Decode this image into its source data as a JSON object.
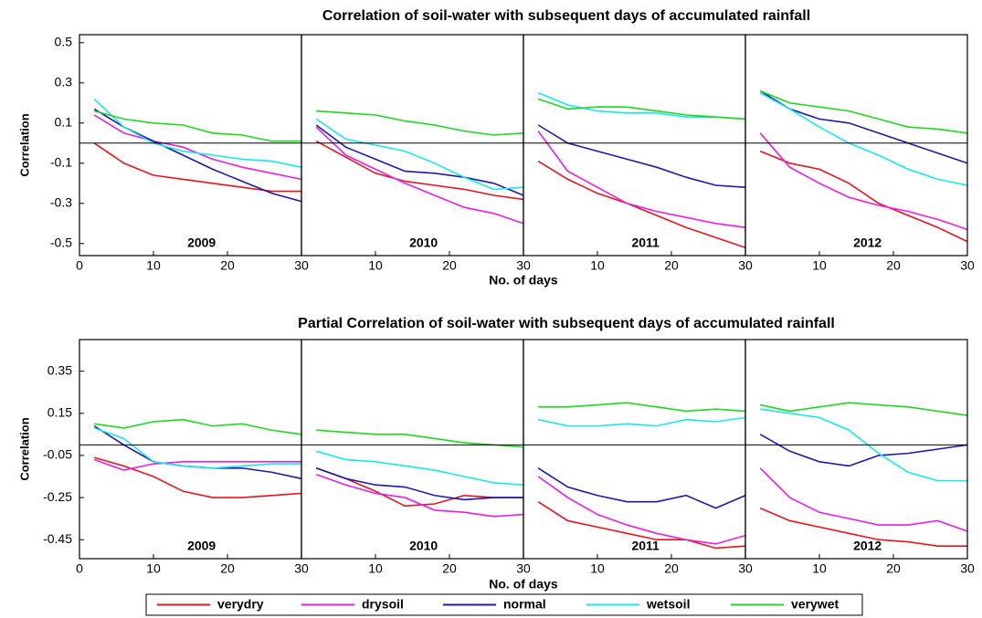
{
  "legend": [
    {
      "name": "verydry",
      "color": "#e8141b"
    },
    {
      "name": "drysoil",
      "color": "#e81ee8"
    },
    {
      "name": "normal",
      "color": "#1a1ab0"
    },
    {
      "name": "wetsoil",
      "color": "#17e8e8"
    },
    {
      "name": "verywet",
      "color": "#1ed81e"
    }
  ],
  "chart_data": [
    {
      "type": "line",
      "title": "Correlation of soil-water with subsequent days of accumulated rainfall",
      "xlabel": "No. of days",
      "ylabel": "Correlation",
      "x": [
        2,
        6,
        10,
        14,
        18,
        22,
        26,
        30
      ],
      "xlim": [
        0,
        30
      ],
      "xticks": [
        0,
        10,
        20,
        30
      ],
      "ylim": [
        -0.56,
        0.54
      ],
      "yticks": [
        0.5,
        0.3,
        0.1,
        -0.1,
        -0.3,
        -0.5
      ],
      "panels": [
        {
          "label": "2009",
          "series": [
            {
              "values": [
                0.0,
                -0.1,
                -0.16,
                -0.18,
                -0.2,
                -0.22,
                -0.24,
                -0.24
              ]
            },
            {
              "values": [
                0.14,
                0.05,
                0.01,
                -0.02,
                -0.08,
                -0.12,
                -0.15,
                -0.18
              ]
            },
            {
              "values": [
                0.17,
                0.08,
                0.01,
                -0.06,
                -0.13,
                -0.19,
                -0.25,
                -0.29
              ]
            },
            {
              "values": [
                0.22,
                0.08,
                0.0,
                -0.04,
                -0.06,
                -0.08,
                -0.09,
                -0.12
              ]
            },
            {
              "values": [
                0.16,
                0.12,
                0.1,
                0.09,
                0.05,
                0.04,
                0.01,
                0.01
              ]
            }
          ]
        },
        {
          "label": "2010",
          "series": [
            {
              "values": [
                0.01,
                -0.07,
                -0.15,
                -0.19,
                -0.21,
                -0.23,
                -0.26,
                -0.28
              ]
            },
            {
              "values": [
                0.08,
                -0.06,
                -0.13,
                -0.2,
                -0.26,
                -0.32,
                -0.35,
                -0.4
              ]
            },
            {
              "values": [
                0.09,
                -0.02,
                -0.08,
                -0.14,
                -0.15,
                -0.17,
                -0.2,
                -0.26
              ]
            },
            {
              "values": [
                0.12,
                0.02,
                -0.01,
                -0.04,
                -0.1,
                -0.17,
                -0.23,
                -0.22
              ]
            },
            {
              "values": [
                0.16,
                0.15,
                0.14,
                0.11,
                0.09,
                0.06,
                0.04,
                0.05
              ]
            }
          ]
        },
        {
          "label": "2011",
          "series": [
            {
              "values": [
                -0.09,
                -0.18,
                -0.25,
                -0.3,
                -0.36,
                -0.42,
                -0.47,
                -0.52
              ]
            },
            {
              "values": [
                0.06,
                -0.14,
                -0.22,
                -0.3,
                -0.34,
                -0.37,
                -0.4,
                -0.42
              ]
            },
            {
              "values": [
                0.09,
                0.0,
                -0.04,
                -0.08,
                -0.12,
                -0.17,
                -0.21,
                -0.22
              ]
            },
            {
              "values": [
                0.25,
                0.19,
                0.16,
                0.15,
                0.15,
                0.13,
                0.13,
                0.12
              ]
            },
            {
              "values": [
                0.22,
                0.17,
                0.18,
                0.18,
                0.16,
                0.14,
                0.13,
                0.12
              ]
            }
          ]
        },
        {
          "label": "2012",
          "series": [
            {
              "values": [
                -0.04,
                -0.1,
                -0.13,
                -0.2,
                -0.3,
                -0.36,
                -0.42,
                -0.49
              ]
            },
            {
              "values": [
                0.05,
                -0.12,
                -0.2,
                -0.27,
                -0.31,
                -0.34,
                -0.38,
                -0.43
              ]
            },
            {
              "values": [
                0.26,
                0.17,
                0.12,
                0.1,
                0.05,
                0.0,
                -0.05,
                -0.1
              ]
            },
            {
              "values": [
                0.25,
                0.17,
                0.08,
                0.0,
                -0.06,
                -0.13,
                -0.18,
                -0.21
              ]
            },
            {
              "values": [
                0.26,
                0.2,
                0.18,
                0.16,
                0.12,
                0.08,
                0.07,
                0.05
              ]
            }
          ]
        }
      ]
    },
    {
      "type": "line",
      "title": "Partial Correlation of soil-water with subsequent days of accumulated rainfall",
      "xlabel": "No. of days",
      "ylabel": "Correlation",
      "x": [
        2,
        6,
        10,
        14,
        18,
        22,
        26,
        30
      ],
      "xlim": [
        0,
        30
      ],
      "xticks": [
        0,
        10,
        20,
        30
      ],
      "ylim": [
        -0.54,
        0.5
      ],
      "yticks": [
        0.35,
        0.15,
        -0.05,
        -0.25,
        -0.45
      ],
      "panels": [
        {
          "label": "2009",
          "series": [
            {
              "values": [
                -0.06,
                -0.1,
                -0.15,
                -0.22,
                -0.25,
                -0.25,
                -0.24,
                -0.23
              ]
            },
            {
              "values": [
                -0.07,
                -0.12,
                -0.09,
                -0.08,
                -0.08,
                -0.08,
                -0.08,
                -0.08
              ]
            },
            {
              "values": [
                0.09,
                0.0,
                -0.08,
                -0.1,
                -0.11,
                -0.11,
                -0.13,
                -0.16
              ]
            },
            {
              "values": [
                0.08,
                0.03,
                -0.08,
                -0.1,
                -0.11,
                -0.1,
                -0.09,
                -0.09
              ]
            },
            {
              "values": [
                0.1,
                0.08,
                0.11,
                0.12,
                0.09,
                0.1,
                0.07,
                0.05
              ]
            }
          ]
        },
        {
          "label": "2010",
          "series": [
            {
              "values": [
                -0.11,
                -0.16,
                -0.22,
                -0.29,
                -0.28,
                -0.24,
                -0.25,
                -0.25
              ]
            },
            {
              "values": [
                -0.14,
                -0.19,
                -0.23,
                -0.25,
                -0.31,
                -0.32,
                -0.34,
                -0.33
              ]
            },
            {
              "values": [
                -0.11,
                -0.16,
                -0.19,
                -0.2,
                -0.24,
                -0.26,
                -0.25,
                -0.25
              ]
            },
            {
              "values": [
                -0.03,
                -0.07,
                -0.08,
                -0.1,
                -0.12,
                -0.15,
                -0.18,
                -0.19
              ]
            },
            {
              "values": [
                0.07,
                0.06,
                0.05,
                0.05,
                0.03,
                0.01,
                0.0,
                -0.01
              ]
            }
          ]
        },
        {
          "label": "2011",
          "series": [
            {
              "values": [
                -0.27,
                -0.36,
                -0.39,
                -0.42,
                -0.45,
                -0.45,
                -0.49,
                -0.48
              ]
            },
            {
              "values": [
                -0.15,
                -0.25,
                -0.33,
                -0.38,
                -0.42,
                -0.45,
                -0.47,
                -0.43
              ]
            },
            {
              "values": [
                -0.11,
                -0.2,
                -0.24,
                -0.27,
                -0.27,
                -0.24,
                -0.3,
                -0.24
              ]
            },
            {
              "values": [
                0.12,
                0.09,
                0.09,
                0.1,
                0.09,
                0.12,
                0.11,
                0.13
              ]
            },
            {
              "values": [
                0.18,
                0.18,
                0.19,
                0.2,
                0.18,
                0.16,
                0.17,
                0.16
              ]
            }
          ]
        },
        {
          "label": "2012",
          "series": [
            {
              "values": [
                -0.3,
                -0.36,
                -0.39,
                -0.42,
                -0.45,
                -0.46,
                -0.48,
                -0.48
              ]
            },
            {
              "values": [
                -0.11,
                -0.25,
                -0.32,
                -0.35,
                -0.38,
                -0.38,
                -0.36,
                -0.41
              ]
            },
            {
              "values": [
                0.05,
                -0.03,
                -0.08,
                -0.1,
                -0.05,
                -0.04,
                -0.02,
                0.0
              ]
            },
            {
              "values": [
                0.17,
                0.15,
                0.13,
                0.07,
                -0.04,
                -0.13,
                -0.17,
                -0.17
              ]
            },
            {
              "values": [
                0.19,
                0.16,
                0.18,
                0.2,
                0.19,
                0.18,
                0.16,
                0.14
              ]
            }
          ]
        }
      ]
    }
  ]
}
